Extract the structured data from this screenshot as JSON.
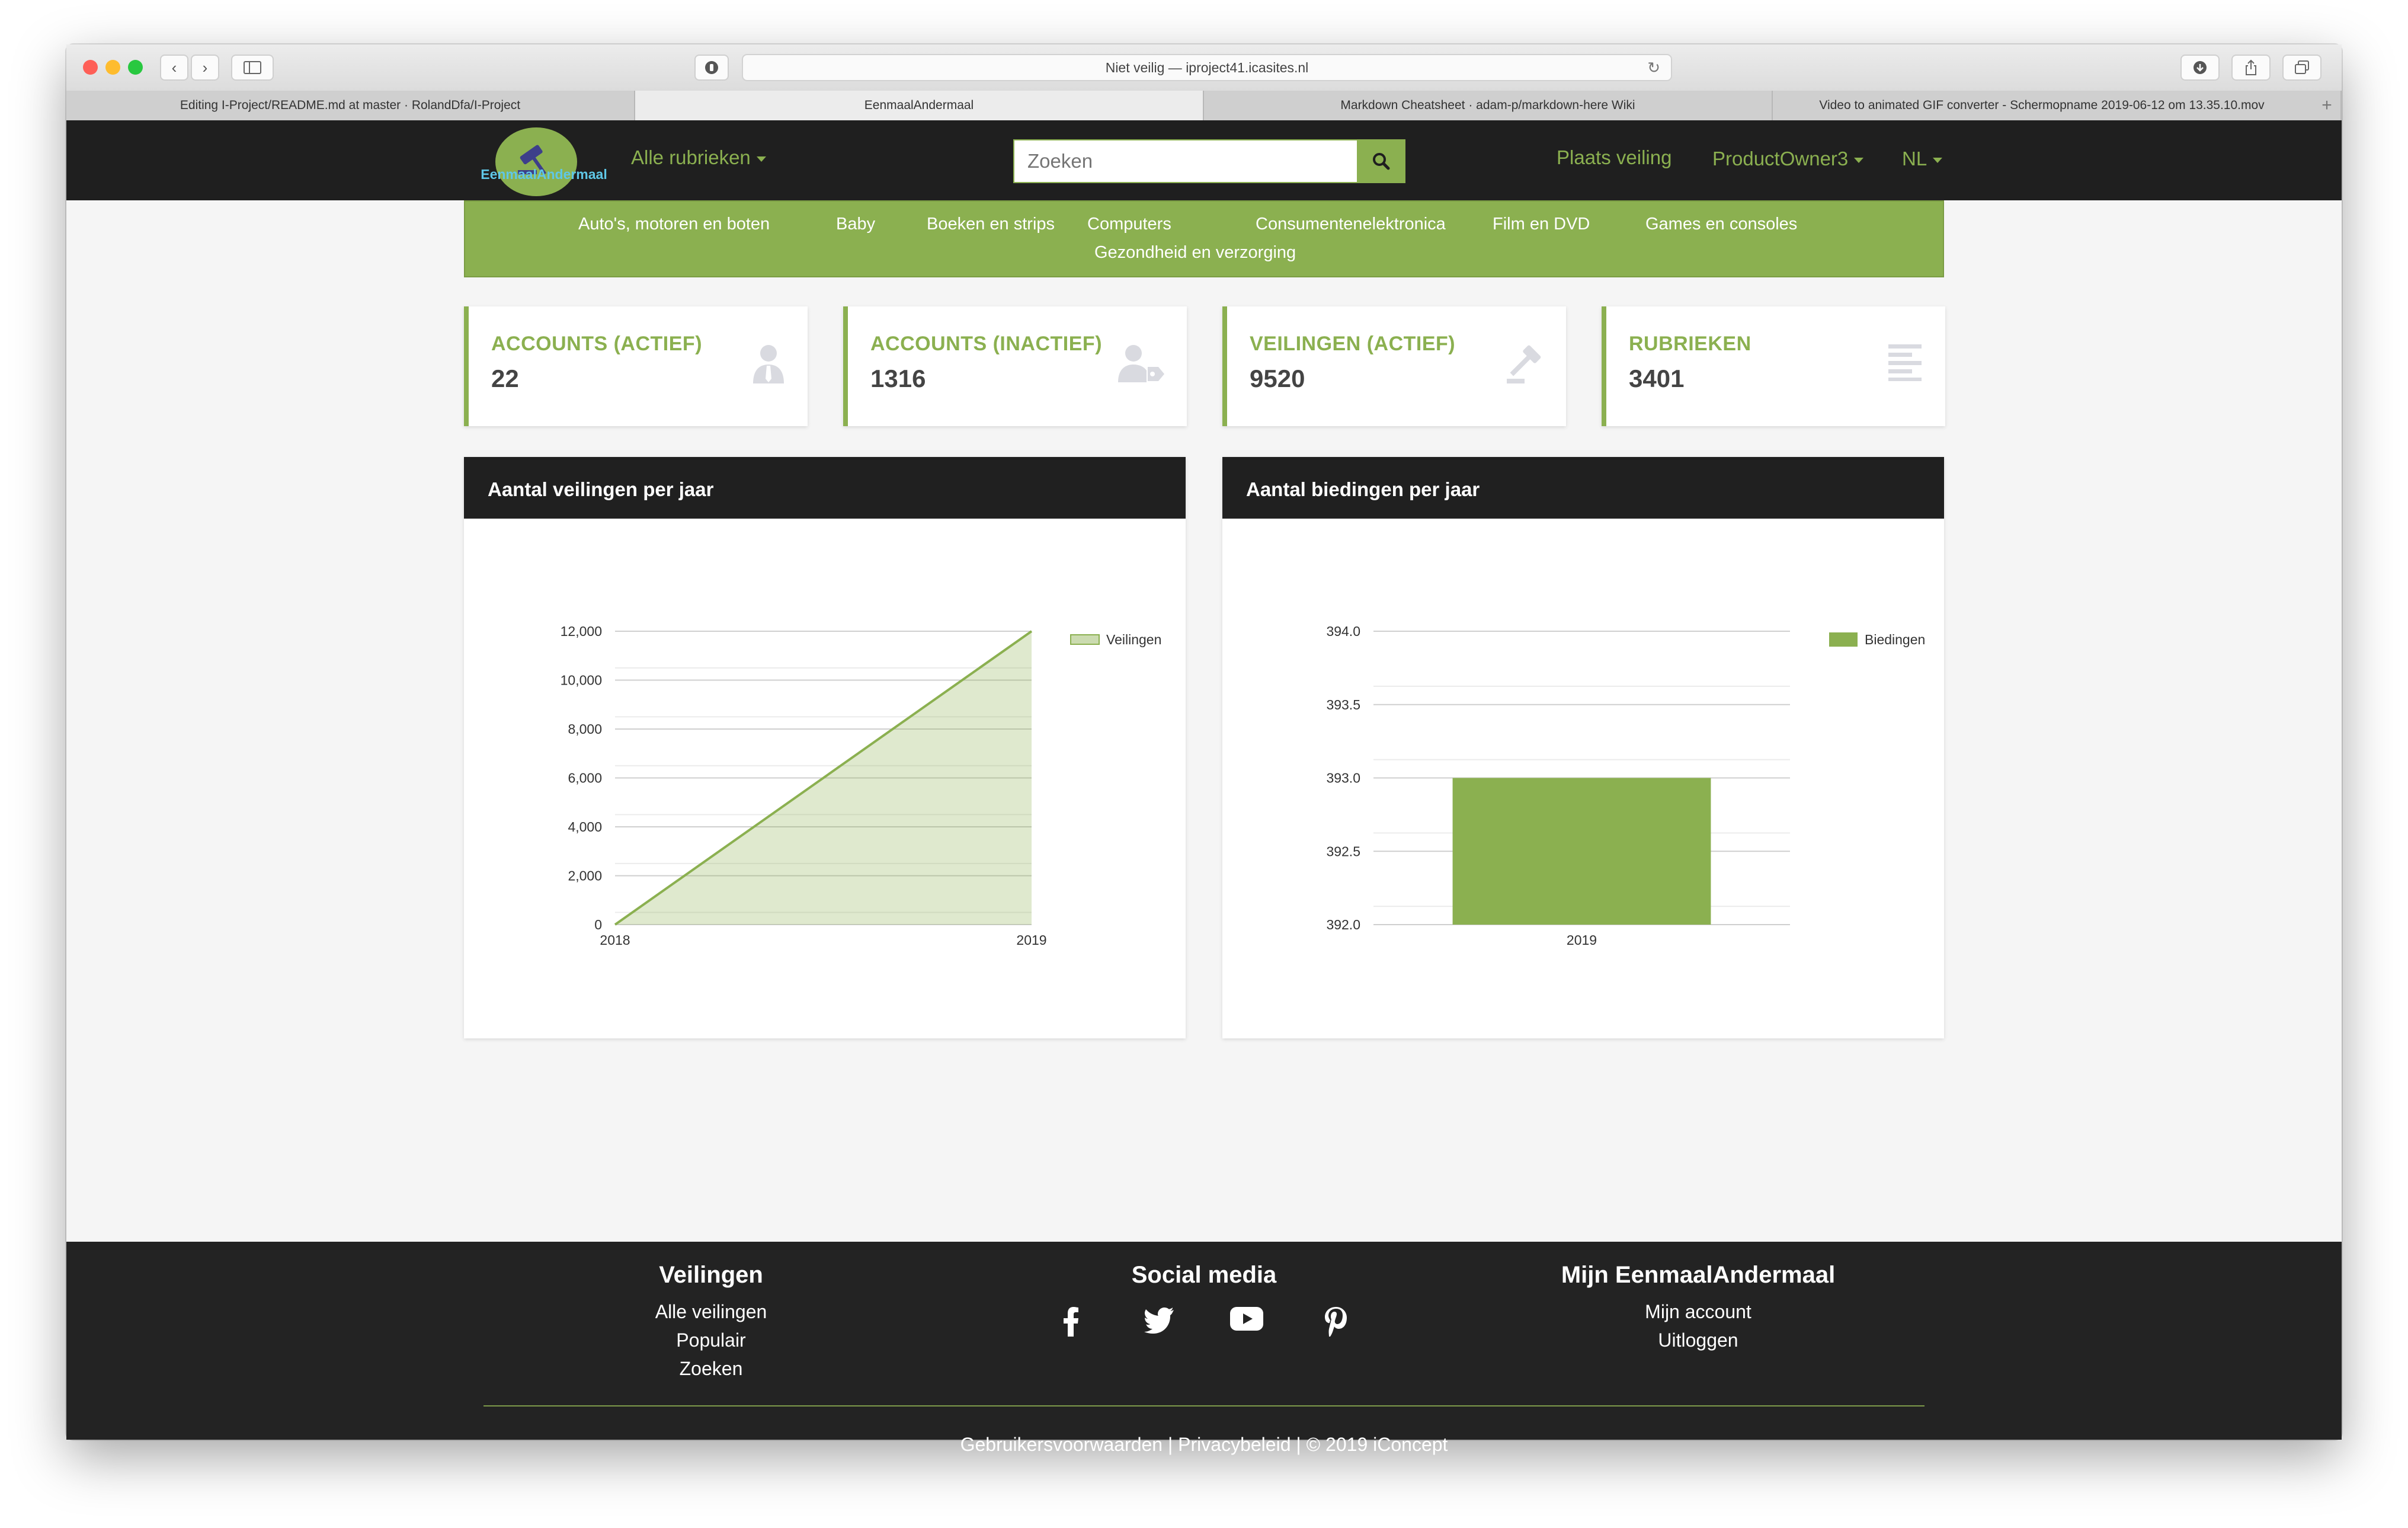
{
  "browser": {
    "url_text": "Niet veilig — iproject41.icasites.nl",
    "tabs": [
      {
        "label": "Editing I-Project/README.md at master · RolandDfa/I-Project"
      },
      {
        "label": "EenmaalAndermaal"
      },
      {
        "label": "Markdown Cheatsheet · adam-p/markdown-here Wiki"
      },
      {
        "label": "Video to animated GIF converter - Schermopname 2019-06-12 om 13.35.10.mov"
      }
    ]
  },
  "nav": {
    "logo_text": "EenmaalAndermaal",
    "all_categories": "Alle rubrieken",
    "search_placeholder": "Zoeken",
    "place_auction": "Plaats veiling",
    "user": "ProductOwner3",
    "language": "NL"
  },
  "categories": [
    "Auto's, motoren en boten",
    "Baby",
    "Boeken en strips",
    "Computers",
    "Consumentenelektronica",
    "Film en DVD",
    "Games en consoles",
    "Gezondheid en verzorging"
  ],
  "stats": [
    {
      "title": "ACCOUNTS (ACTIEF)",
      "value": "22",
      "icon": "user-tie-icon"
    },
    {
      "title": "ACCOUNTS (INACTIEF)",
      "value": "1316",
      "icon": "user-tag-icon"
    },
    {
      "title": "VEILINGEN (ACTIEF)",
      "value": "9520",
      "icon": "gavel-icon"
    },
    {
      "title": "RUBRIEKEN",
      "value": "3401",
      "icon": "align-left-icon"
    }
  ],
  "panels": {
    "auctions_title": "Aantal veilingen per jaar",
    "bids_title": "Aantal biedingen per jaar"
  },
  "chart_data": [
    {
      "type": "area",
      "title": "Aantal veilingen per jaar",
      "categories": [
        "2018",
        "2019"
      ],
      "series": [
        {
          "name": "Veilingen",
          "values": [
            0,
            12000
          ]
        }
      ],
      "ylim": [
        0,
        12000
      ],
      "yticks": [
        "0",
        "2,000",
        "4,000",
        "6,000",
        "8,000",
        "10,000",
        "12,000"
      ],
      "grid": true,
      "legend": "top-right",
      "color": "#8bb050"
    },
    {
      "type": "bar",
      "title": "Aantal biedingen per jaar",
      "categories": [
        "2019"
      ],
      "series": [
        {
          "name": "Biedingen",
          "values": [
            393
          ]
        }
      ],
      "ylim": [
        392,
        394
      ],
      "yticks": [
        "392.0",
        "392.5",
        "393.0",
        "393.5",
        "394.0"
      ],
      "grid": true,
      "legend": "top-right",
      "color": "#8bb050"
    }
  ],
  "footer": {
    "col1_title": "Veilingen",
    "col1_links": [
      "Alle veilingen",
      "Populair",
      "Zoeken"
    ],
    "col2_title": "Social media",
    "social_icons": [
      "facebook-icon",
      "twitter-icon",
      "youtube-icon",
      "pinterest-icon"
    ],
    "col3_title": "Mijn EenmaalAndermaal",
    "col3_links": [
      "Mijn account",
      "Uitloggen"
    ],
    "copyright": "Gebruikersvoorwaarden | Privacybeleid | © 2019 iConcept"
  },
  "colors": {
    "accent": "#8bb050",
    "dark": "#1f1f1f"
  }
}
